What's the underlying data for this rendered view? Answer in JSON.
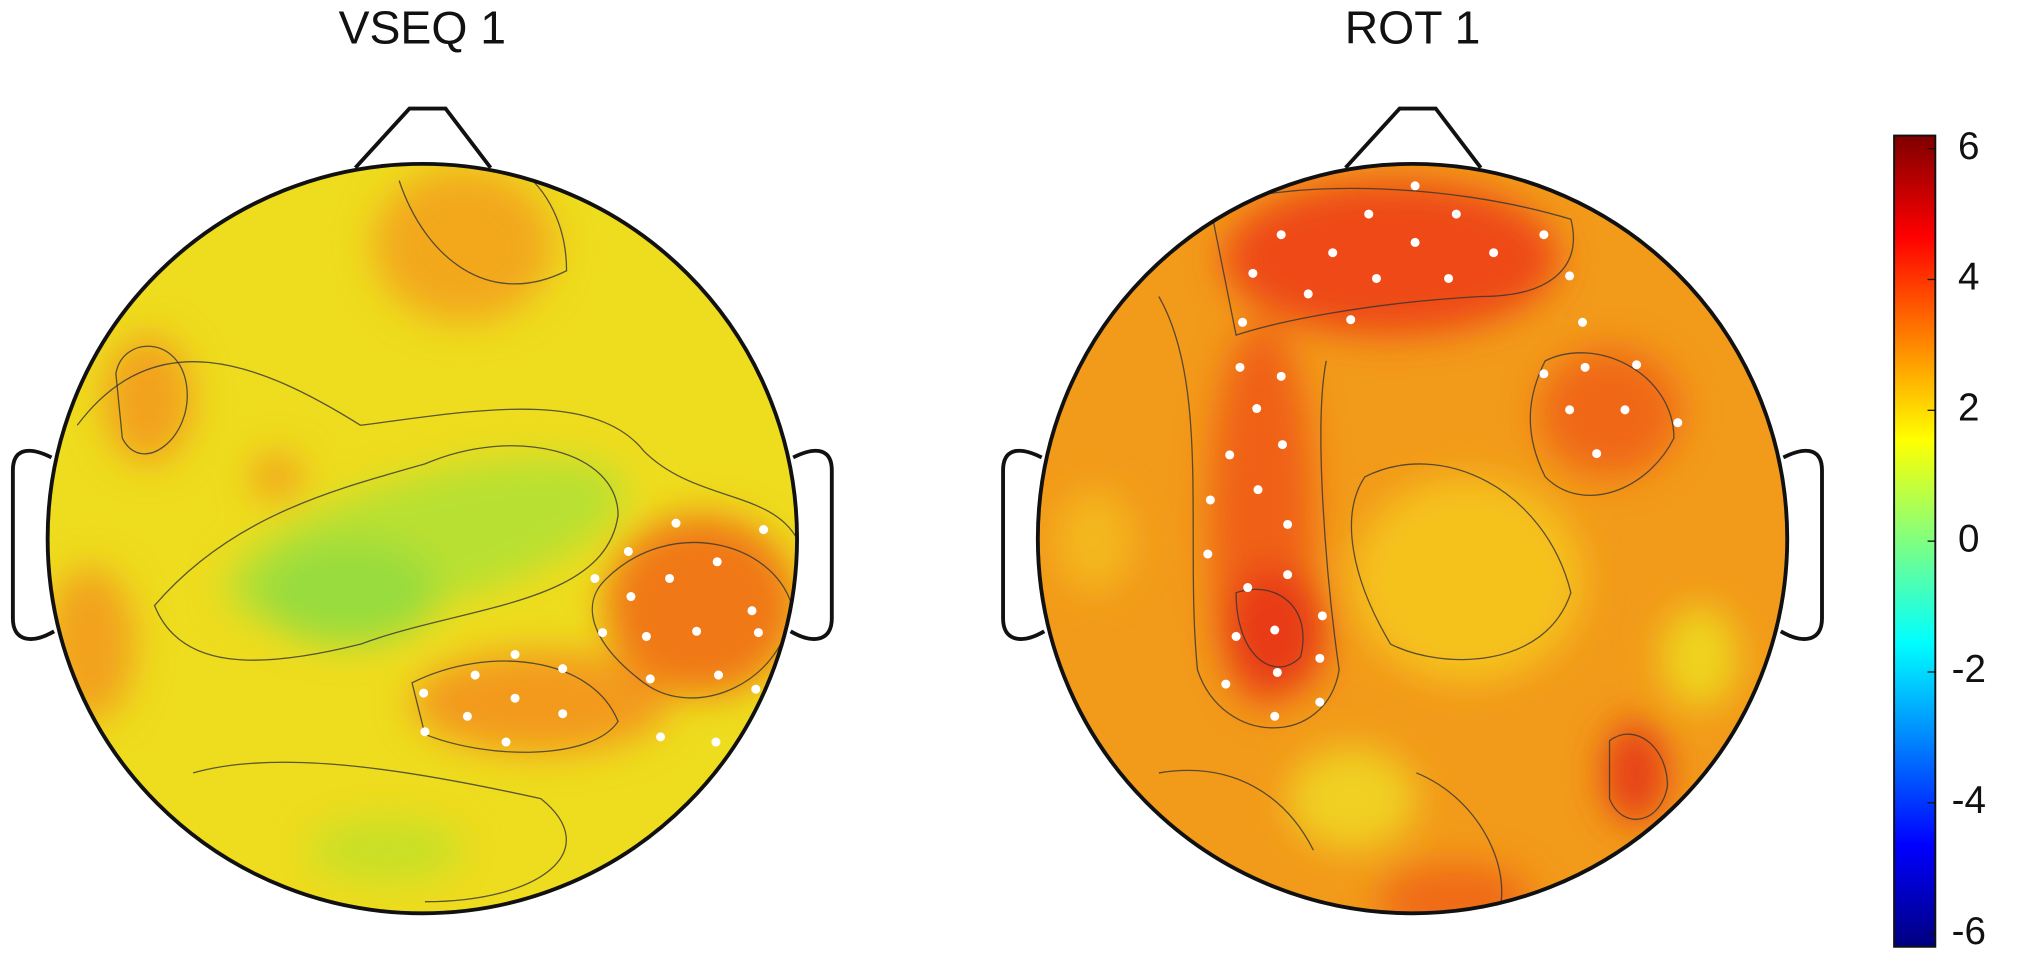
{
  "chart_data": {
    "type": "topomap",
    "maps": [
      {
        "title": "VSEQ 1"
      },
      {
        "title": "ROT 1"
      }
    ],
    "colorbar": {
      "ylim": [
        -6.2,
        6.2
      ],
      "yticks": [
        -6,
        -4,
        -2,
        0,
        2,
        4,
        6
      ],
      "colormap": [
        "#00007f",
        "#0000ff",
        "#0080ff",
        "#00ffff",
        "#80ff80",
        "#ffff00",
        "#ff8000",
        "#ff0000",
        "#7f0000"
      ]
    }
  }
}
